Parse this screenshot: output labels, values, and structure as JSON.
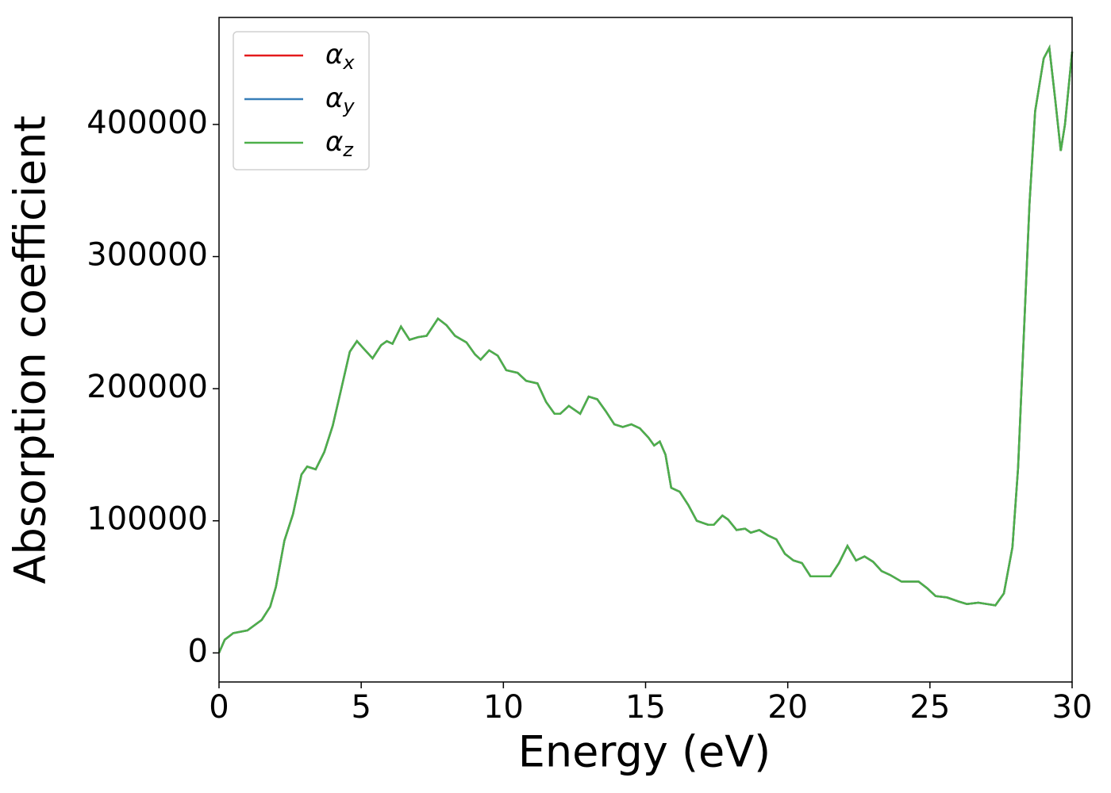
{
  "chart_data": {
    "type": "line",
    "xlabel": "Energy (eV)",
    "ylabel": "Absorption coefficient",
    "x": [
      0,
      0.2,
      0.5,
      1.0,
      1.5,
      1.8,
      2.0,
      2.3,
      2.6,
      2.9,
      3.1,
      3.4,
      3.7,
      4.0,
      4.3,
      4.6,
      4.85,
      5.1,
      5.4,
      5.7,
      5.9,
      6.1,
      6.4,
      6.7,
      7.0,
      7.3,
      7.7,
      8.0,
      8.3,
      8.7,
      9.0,
      9.2,
      9.5,
      9.8,
      10.1,
      10.5,
      10.8,
      11.2,
      11.5,
      11.8,
      12.0,
      12.3,
      12.7,
      13.0,
      13.3,
      13.6,
      13.9,
      14.2,
      14.5,
      14.8,
      15.1,
      15.3,
      15.5,
      15.7,
      15.9,
      16.2,
      16.5,
      16.8,
      17.2,
      17.4,
      17.7,
      17.9,
      18.2,
      18.5,
      18.7,
      19.0,
      19.3,
      19.6,
      19.9,
      20.2,
      20.5,
      20.8,
      21.1,
      21.5,
      21.8,
      22.1,
      22.4,
      22.7,
      23.0,
      23.3,
      23.6,
      24.0,
      24.3,
      24.6,
      24.9,
      25.2,
      25.6,
      26.0,
      26.3,
      26.7,
      27.0,
      27.3,
      27.6,
      27.9,
      28.1,
      28.3,
      28.5,
      28.7,
      29.0,
      29.2,
      29.4,
      29.6,
      29.75,
      30
    ],
    "series": [
      {
        "name": "αx",
        "color": "#e41a1c",
        "values": [
          0,
          10000,
          15000,
          17000,
          25000,
          35000,
          50000,
          85000,
          105000,
          135000,
          141000,
          139000,
          152000,
          172000,
          200000,
          228000,
          236000,
          230000,
          223000,
          233000,
          236000,
          234000,
          247000,
          237000,
          239000,
          240000,
          253000,
          248000,
          240000,
          235000,
          226000,
          222000,
          229000,
          225000,
          214000,
          212000,
          206000,
          204000,
          190000,
          181000,
          181000,
          187000,
          181000,
          194000,
          192000,
          183000,
          173000,
          171000,
          173000,
          170000,
          163000,
          157000,
          160000,
          150000,
          125000,
          122000,
          112000,
          100000,
          97000,
          97000,
          104000,
          101000,
          93000,
          94000,
          91000,
          93000,
          89000,
          86000,
          75000,
          70000,
          68000,
          58000,
          58000,
          58000,
          68000,
          81000,
          70000,
          73000,
          69000,
          62000,
          59000,
          54000,
          54000,
          54000,
          49000,
          43000,
          42000,
          39000,
          37000,
          38000,
          37000,
          36000,
          45000,
          80000,
          140000,
          240000,
          340000,
          410000,
          450000,
          458000,
          420000,
          380000,
          400000,
          455000
        ]
      },
      {
        "name": "αy",
        "color": "#377eb8",
        "values": [
          0,
          10000,
          15000,
          17000,
          25000,
          35000,
          50000,
          85000,
          105000,
          135000,
          141000,
          139000,
          152000,
          172000,
          200000,
          228000,
          236000,
          230000,
          223000,
          233000,
          236000,
          234000,
          247000,
          237000,
          239000,
          240000,
          253000,
          248000,
          240000,
          235000,
          226000,
          222000,
          229000,
          225000,
          214000,
          212000,
          206000,
          204000,
          190000,
          181000,
          181000,
          187000,
          181000,
          194000,
          192000,
          183000,
          173000,
          171000,
          173000,
          170000,
          163000,
          157000,
          160000,
          150000,
          125000,
          122000,
          112000,
          100000,
          97000,
          97000,
          104000,
          101000,
          93000,
          94000,
          91000,
          93000,
          89000,
          86000,
          75000,
          70000,
          68000,
          58000,
          58000,
          58000,
          68000,
          81000,
          70000,
          73000,
          69000,
          62000,
          59000,
          54000,
          54000,
          54000,
          49000,
          43000,
          42000,
          39000,
          37000,
          38000,
          37000,
          36000,
          45000,
          80000,
          140000,
          240000,
          340000,
          410000,
          450000,
          458000,
          420000,
          380000,
          400000,
          455000
        ]
      },
      {
        "name": "αz",
        "color": "#4daf4a",
        "values": [
          0,
          10000,
          15000,
          17000,
          25000,
          35000,
          50000,
          85000,
          105000,
          135000,
          141000,
          139000,
          152000,
          172000,
          200000,
          228000,
          236000,
          230000,
          223000,
          233000,
          236000,
          234000,
          247000,
          237000,
          239000,
          240000,
          253000,
          248000,
          240000,
          235000,
          226000,
          222000,
          229000,
          225000,
          214000,
          212000,
          206000,
          204000,
          190000,
          181000,
          181000,
          187000,
          181000,
          194000,
          192000,
          183000,
          173000,
          171000,
          173000,
          170000,
          163000,
          157000,
          160000,
          150000,
          125000,
          122000,
          112000,
          100000,
          97000,
          97000,
          104000,
          101000,
          93000,
          94000,
          91000,
          93000,
          89000,
          86000,
          75000,
          70000,
          68000,
          58000,
          58000,
          58000,
          68000,
          81000,
          70000,
          73000,
          69000,
          62000,
          59000,
          54000,
          54000,
          54000,
          49000,
          43000,
          42000,
          39000,
          37000,
          38000,
          37000,
          36000,
          45000,
          80000,
          140000,
          240000,
          340000,
          410000,
          450000,
          458000,
          420000,
          380000,
          400000,
          455000
        ]
      }
    ],
    "xlim": [
      0,
      30
    ],
    "xticks": [
      0,
      5,
      10,
      15,
      20,
      25,
      30
    ],
    "ylim": [
      -22000,
      481000
    ],
    "yticks": [
      0,
      100000,
      200000,
      300000,
      400000
    ],
    "legend": "upper left",
    "grid": false
  }
}
